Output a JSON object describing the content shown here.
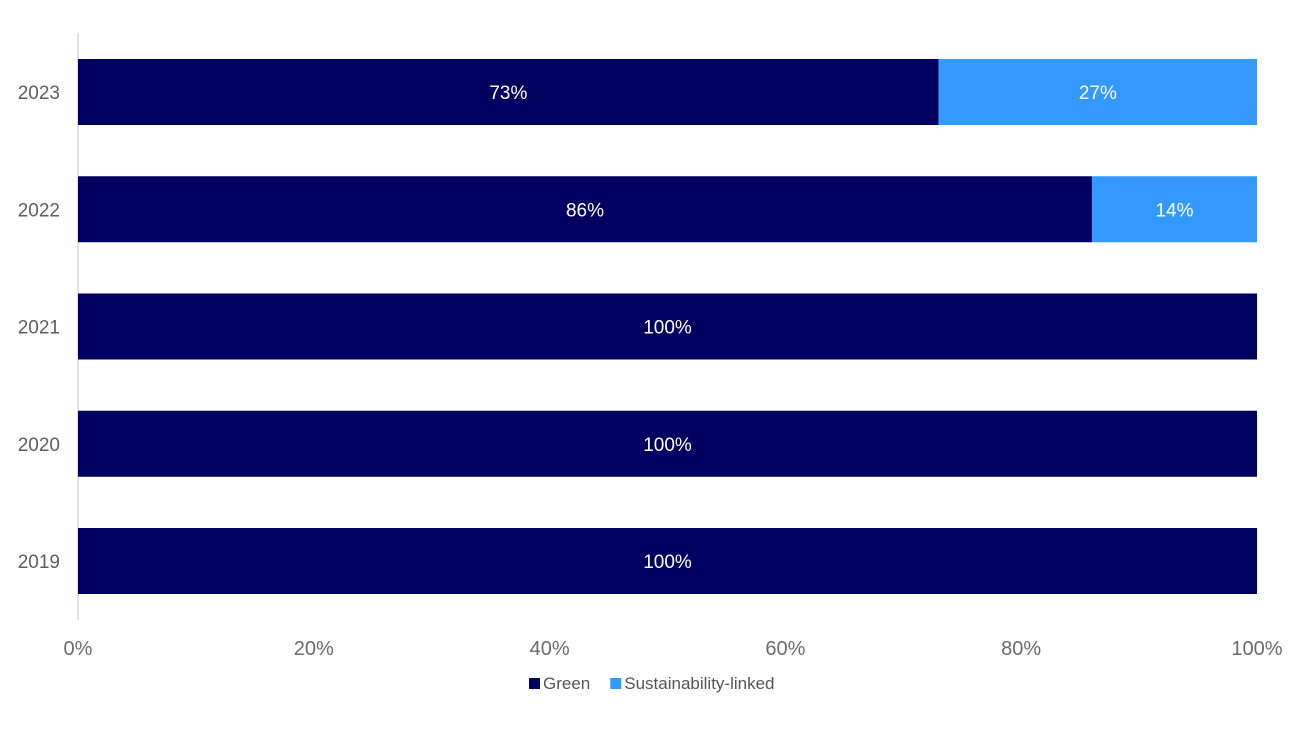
{
  "chart_data": {
    "type": "bar",
    "orientation": "horizontal",
    "stacked": true,
    "categories": [
      "2023",
      "2022",
      "2021",
      "2020",
      "2019"
    ],
    "series": [
      {
        "name": "Green",
        "color": "#000060",
        "values": [
          73,
          86,
          100,
          100,
          100
        ],
        "labels": [
          "73%",
          "86%",
          "100%",
          "100%",
          "100%"
        ]
      },
      {
        "name": "Sustainability-linked",
        "color": "#3399ff",
        "values": [
          27,
          14,
          0,
          0,
          0
        ],
        "labels": [
          "27%",
          "14%",
          "",
          "",
          ""
        ]
      }
    ],
    "xlim": [
      0,
      100
    ],
    "x_ticks": [
      "0%",
      "20%",
      "40%",
      "60%",
      "80%",
      "100%"
    ],
    "grid": false,
    "legend_position": "bottom"
  }
}
